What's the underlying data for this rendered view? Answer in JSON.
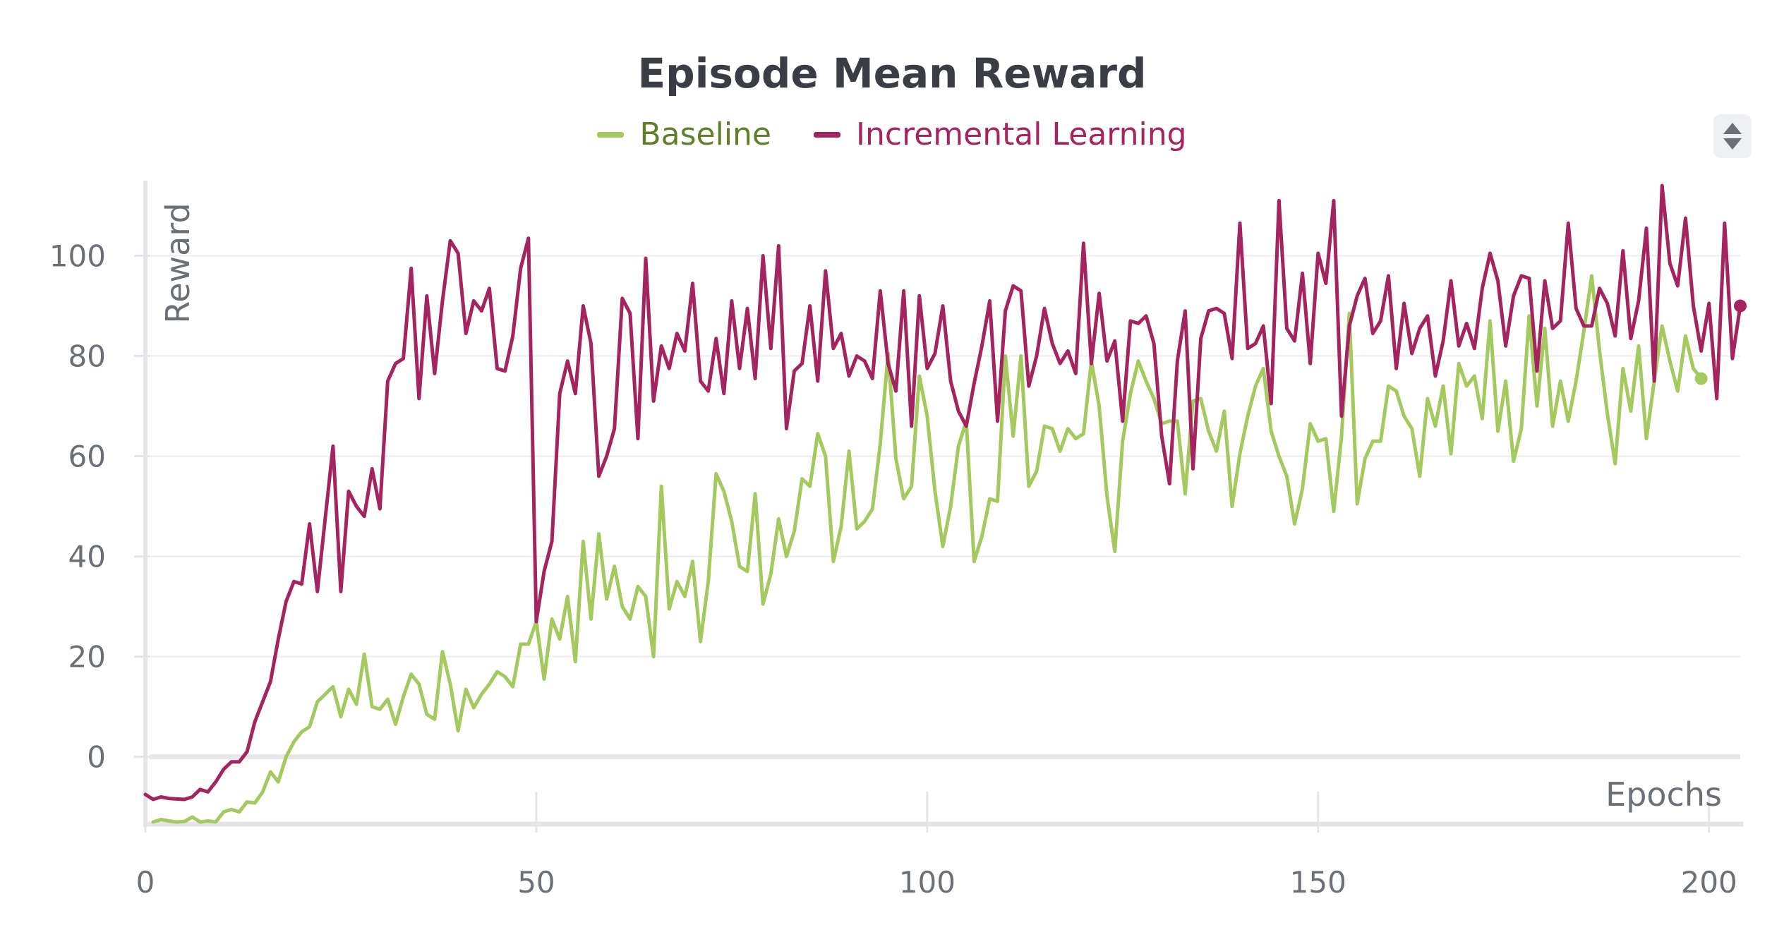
{
  "chart_data": {
    "type": "line",
    "title": "Episode Mean Reward",
    "xlabel": "Epochs",
    "ylabel": "Reward",
    "xlim": [
      0,
      204
    ],
    "ylim": [
      -13,
      115
    ],
    "xticks": [
      0,
      50,
      100,
      150,
      200
    ],
    "yticks": [
      0,
      20,
      40,
      60,
      80,
      100
    ],
    "grid": true,
    "legend_position": "top-center",
    "series": [
      {
        "name": "Baseline",
        "color": "#a3c95f",
        "text_color": "#5f7f2a",
        "x_start": 1,
        "values": [
          -13,
          -12.5,
          -12.8,
          -13,
          -12.9,
          -12,
          -13,
          -12.8,
          -13,
          -11,
          -10.5,
          -11,
          -9,
          -9.2,
          -7,
          -3,
          -5,
          0,
          3,
          5,
          6,
          11,
          12.5,
          14,
          8,
          13.5,
          10.5,
          20.5,
          10,
          9.5,
          11.5,
          6.5,
          12,
          16.5,
          14.5,
          8.5,
          7.5,
          21,
          14.5,
          5.2,
          13.5,
          9.8,
          12.5,
          14.5,
          17,
          16,
          14,
          22.5,
          22.5,
          27,
          15.5,
          27.5,
          23.5,
          32,
          19,
          43,
          27.5,
          44.5,
          31.5,
          38,
          30,
          27.5,
          34,
          32,
          20,
          54,
          29.5,
          35,
          32,
          39,
          23,
          35,
          56.5,
          53,
          47,
          38,
          37,
          52.5,
          30.5,
          36.5,
          47.5,
          40,
          45,
          55.5,
          54,
          64.5,
          60,
          39,
          46,
          61,
          45.5,
          47,
          49.5,
          62.5,
          80.5,
          59.5,
          51.5,
          54,
          76,
          68,
          53,
          42,
          50,
          62,
          67,
          39,
          44,
          51.5,
          51,
          80,
          64,
          80,
          54,
          57,
          66,
          65.5,
          61,
          65.5,
          63.5,
          64.5,
          79,
          70,
          52,
          41,
          63,
          72.5,
          79,
          75,
          71.5,
          66.5,
          67,
          67,
          52.5,
          71,
          71.5,
          65,
          61,
          69,
          50,
          60.5,
          68,
          74,
          77.5,
          65,
          60,
          56,
          46.5,
          53.5,
          66.5,
          63,
          63.5,
          49,
          64,
          88.5,
          50.5,
          59.5,
          63,
          63,
          74,
          73,
          68,
          65.5,
          56,
          71.5,
          66,
          74,
          60.5,
          78.5,
          74,
          76,
          67.5,
          87,
          65,
          75,
          59,
          65.5,
          88,
          70,
          85.5,
          66,
          75,
          67,
          75,
          85,
          96,
          81,
          68.5,
          58.5,
          77.5,
          69,
          82,
          63.5,
          75,
          86,
          79,
          73,
          84,
          77.5,
          75.5
        ]
      },
      {
        "name": "Incremental Learning",
        "color": "#a3245e",
        "text_color": "#a3245e",
        "x_start": 0,
        "values": [
          -7.5,
          -8.5,
          -8,
          -8.3,
          -8.4,
          -8.5,
          -8,
          -6.5,
          -7,
          -5,
          -2.5,
          -1,
          -1,
          1,
          7,
          11,
          15,
          23.5,
          31,
          35,
          34.5,
          46.5,
          33,
          47.5,
          62,
          33,
          53,
          50,
          48,
          57.5,
          49.5,
          75,
          78.5,
          79.5,
          97.5,
          71.5,
          92,
          76.5,
          91,
          103,
          100.5,
          84.5,
          91,
          89,
          93.5,
          77.5,
          77,
          84,
          97.5,
          103.5,
          27,
          37,
          43,
          72.5,
          79,
          72.5,
          90,
          82.5,
          56,
          60,
          65.5,
          91.5,
          88.5,
          63.5,
          99.5,
          71,
          82,
          77.5,
          84.5,
          81,
          94.5,
          75,
          73,
          83.5,
          72.5,
          91,
          77.5,
          89.5,
          75.5,
          100,
          81.5,
          102,
          65.5,
          77,
          78.5,
          90,
          75,
          97,
          81.5,
          84.5,
          76,
          80,
          79,
          75.5,
          93,
          78.5,
          73,
          93,
          66,
          92,
          77.5,
          80.5,
          90,
          75,
          69,
          66,
          74.5,
          82,
          91,
          67,
          89,
          94,
          93,
          74,
          80,
          89.5,
          82.5,
          78.5,
          81,
          76.5,
          102.5,
          78.5,
          92.5,
          79,
          83,
          67,
          87,
          86.5,
          88,
          82.5,
          64,
          54.5,
          79,
          89,
          57.5,
          83.5,
          89,
          89.5,
          88.5,
          79.5,
          106.5,
          81.5,
          82.5,
          86,
          70.5,
          111,
          85.5,
          83,
          96.5,
          78.5,
          100.5,
          94.5,
          111,
          68,
          86,
          92,
          95.5,
          84.5,
          87,
          96,
          77.5,
          90.5,
          80.5,
          85.5,
          88,
          76,
          83,
          95,
          82,
          86.5,
          81.5,
          93.5,
          100.5,
          95,
          82,
          92,
          96,
          95.5,
          77,
          95,
          85.5,
          87,
          106.5,
          89.5,
          86,
          86,
          93.5,
          90.5,
          84,
          101,
          83.5,
          91,
          105.5,
          75,
          114,
          98.5,
          94,
          107.5,
          90,
          81,
          90.5,
          71.5,
          106.5,
          79.5,
          90
        ]
      }
    ]
  }
}
